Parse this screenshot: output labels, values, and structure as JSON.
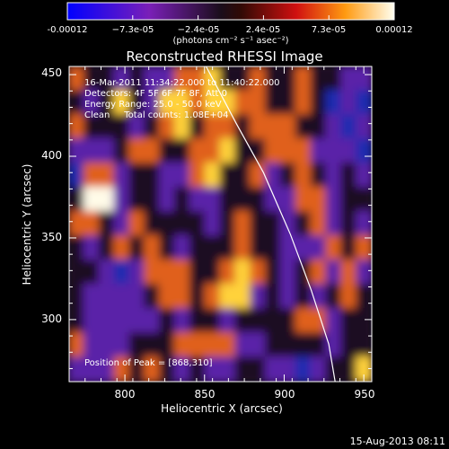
{
  "chart_data": {
    "type": "heatmap",
    "title": "Reconstructed RHESSI Image",
    "xlabel": "Heliocentric X (arcsec)",
    "ylabel": "Heliocentric Y (arcsec)",
    "xlim": [
      765,
      955
    ],
    "ylim": [
      262,
      455
    ],
    "x_ticks": [
      800,
      850,
      900,
      950
    ],
    "y_ticks": [
      300,
      350,
      400,
      450
    ],
    "grid": false,
    "colormap": "rainbow",
    "colorbar": {
      "range": [
        -0.00012,
        0.00012
      ],
      "tick_labels": [
        "-0.00012",
        "−7.3e-05",
        "−2.4e-05",
        "2.4e-05",
        "7.3e-05",
        "0.00012"
      ],
      "units_label": "(photons cm⁻² s⁻¹ asec⁻²)"
    },
    "info_lines": [
      "16-Mar-2011 11:34:22.000 to 11:40:22.000",
      "Detectors: 4F 5F 6F 7F 8F, Att 0",
      "Energy Range: 25.0 - 50.0 keV",
      "Clean     Total counts: 1.08E+04"
    ],
    "peak_label": "Position of Peak = [868,310]",
    "peak": [
      868,
      310
    ],
    "limb_curve": [
      [
        851,
        455
      ],
      [
        870,
        420
      ],
      [
        887,
        390
      ],
      [
        904,
        352
      ],
      [
        917,
        318
      ],
      [
        928,
        285
      ],
      [
        932,
        262
      ]
    ],
    "image_rows": [
      "32212113342232232211",
      "21242144344332232010",
      "32221234233233322101",
      "11123322334223331110",
      "03312211342231232121",
      "25512212112221133122",
      "33213222212322123121",
      "21232321222322111323",
      "22101333223432123131",
      "21111233234412121232",
      "21111121221222233122",
      "31112223333112222122",
      "11132321211221101224"
    ]
  },
  "footer": {
    "date_stamp": "15-Aug-2013 08:11"
  },
  "colors": {
    "background": "#000000",
    "text": "#ffffff",
    "level_0": "#1a2ab0",
    "level_1": "#5a22a8",
    "level_2": "#1b0d24",
    "level_3": "#e0601a",
    "level_4": "#ffd23a",
    "level_5": "#fffbe8"
  }
}
